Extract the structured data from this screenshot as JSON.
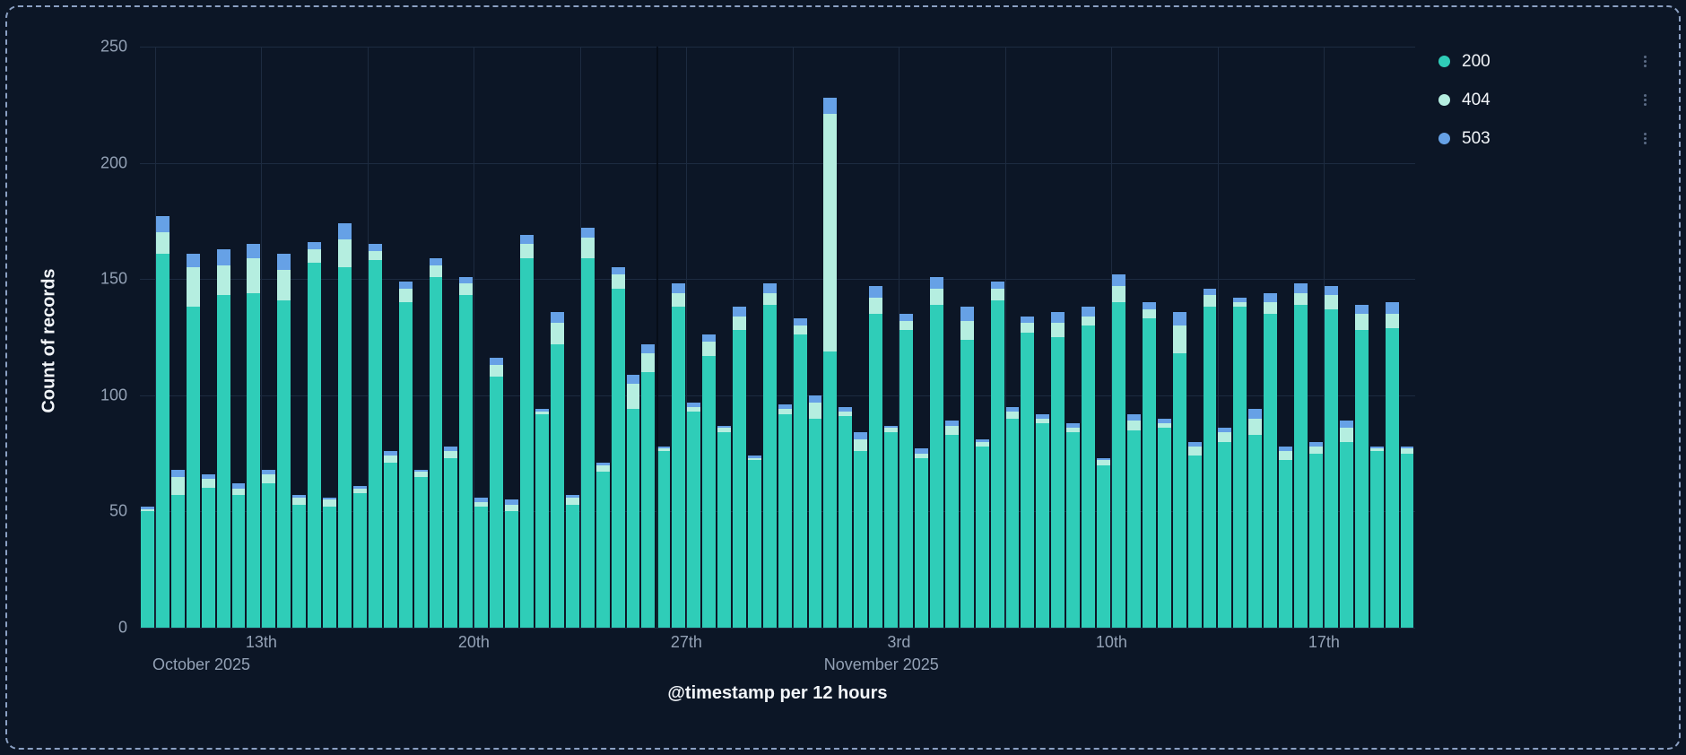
{
  "panel": {
    "background": "#0c1626",
    "border_color": "#8ba0c3",
    "grid_color": "#1d2b40",
    "tick_text_color": "#93a1b5",
    "title_text_color": "#f2f5f9"
  },
  "legend": {
    "more_icon": "vertical-ellipsis"
  },
  "chart_data": {
    "type": "bar",
    "stacked": true,
    "title": "",
    "ylabel": "Count of records",
    "xlabel": "@timestamp per 12 hours",
    "ylim": [
      0,
      250
    ],
    "yticks": [
      0,
      50,
      100,
      150,
      200,
      250
    ],
    "x_unit": "12 hours per bar",
    "bar_count": 84,
    "legend_position": "top-right",
    "grid": true,
    "xticks": [
      {
        "index": 8,
        "label": "13th"
      },
      {
        "index": 22,
        "label": "20th"
      },
      {
        "index": 36,
        "label": "27th"
      },
      {
        "index": 50,
        "label": "3rd"
      },
      {
        "index": 64,
        "label": "10th"
      },
      {
        "index": 78,
        "label": "17th"
      }
    ],
    "month_labels": [
      {
        "index": 0,
        "label": "October 2025"
      },
      {
        "index": 46,
        "label": "November 2025"
      }
    ],
    "vgrid_indices": [
      1,
      8,
      15,
      22,
      29,
      36,
      43,
      50,
      57,
      64,
      71,
      78
    ],
    "divider_index": 34,
    "series": [
      {
        "name": "200",
        "color": "#2fcdb8",
        "values": [
          50,
          161,
          57,
          138,
          60,
          143,
          57,
          144,
          62,
          141,
          53,
          157,
          52,
          155,
          58,
          158,
          71,
          140,
          65,
          151,
          73,
          143,
          52,
          108,
          50,
          159,
          92,
          122,
          53,
          159,
          67,
          146,
          94,
          110,
          76,
          138,
          93,
          117,
          84,
          128,
          72,
          139,
          92,
          126,
          90,
          119,
          91,
          76,
          135,
          84,
          128,
          73,
          139,
          83,
          124,
          78,
          141,
          90,
          127,
          88,
          125,
          84,
          130,
          70,
          140,
          85,
          133,
          86,
          118,
          74,
          138,
          80,
          138,
          83,
          135,
          72,
          139,
          75,
          137,
          80,
          128,
          76,
          129,
          75
        ]
      },
      {
        "name": "404",
        "color": "#b5eee0",
        "values": [
          1,
          9,
          8,
          17,
          4,
          13,
          3,
          15,
          4,
          13,
          3,
          6,
          3,
          12,
          2,
          4,
          3,
          6,
          2,
          5,
          3,
          5,
          2,
          5,
          3,
          6,
          1,
          9,
          3,
          9,
          3,
          6,
          11,
          8,
          1,
          6,
          2,
          6,
          2,
          6,
          1,
          5,
          2,
          4,
          7,
          102,
          2,
          5,
          7,
          2,
          4,
          2,
          7,
          4,
          8,
          2,
          5,
          3,
          4,
          2,
          6,
          2,
          4,
          2,
          7,
          4,
          4,
          2,
          12,
          4,
          5,
          4,
          2,
          7,
          5,
          4,
          5,
          3,
          6,
          6,
          7,
          1,
          6,
          2
        ]
      },
      {
        "name": "503",
        "color": "#66a1e6",
        "values": [
          1,
          7,
          3,
          6,
          2,
          7,
          2,
          6,
          2,
          7,
          1,
          3,
          1,
          7,
          1,
          3,
          2,
          3,
          1,
          3,
          2,
          3,
          2,
          3,
          2,
          4,
          1,
          5,
          1,
          4,
          1,
          3,
          4,
          4,
          1,
          4,
          2,
          3,
          1,
          4,
          1,
          4,
          2,
          3,
          3,
          7,
          2,
          3,
          5,
          1,
          3,
          2,
          5,
          2,
          6,
          1,
          3,
          2,
          3,
          2,
          5,
          2,
          4,
          1,
          5,
          3,
          3,
          2,
          6,
          2,
          3,
          2,
          2,
          4,
          4,
          2,
          4,
          2,
          4,
          3,
          4,
          1,
          5,
          1
        ]
      }
    ]
  }
}
